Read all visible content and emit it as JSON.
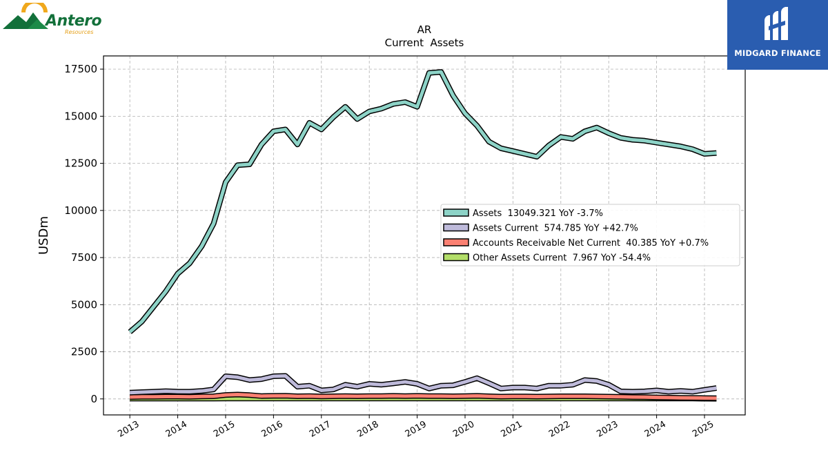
{
  "logos": {
    "left": {
      "name": "Antero",
      "sub": "Resources"
    },
    "right": {
      "name": "MIDGARD FINANCE"
    }
  },
  "colors": {
    "assets": "#8dd3c7",
    "assets_current": "#bebada",
    "accounts_receivable": "#fb8072",
    "other_assets": "#b3de69",
    "outline": "#000000",
    "grid": "#b0b0b0"
  },
  "chart_data": {
    "type": "line",
    "title": "AR",
    "subtitle": "Current  Assets",
    "xlabel": "",
    "ylabel": "USDm",
    "xlim": [
      2012.45,
      2025.85
    ],
    "ylim": [
      -850,
      18200
    ],
    "yticks": [
      0,
      2500,
      5000,
      7500,
      10000,
      12500,
      15000,
      17500
    ],
    "xticks": [
      2013,
      2014,
      2015,
      2016,
      2017,
      2018,
      2019,
      2020,
      2021,
      2022,
      2023,
      2024,
      2025
    ],
    "grid": true,
    "legend_position": "center-right",
    "x": [
      2013.0,
      2013.25,
      2013.5,
      2013.75,
      2014.0,
      2014.25,
      2014.5,
      2014.75,
      2015.0,
      2015.25,
      2015.5,
      2015.75,
      2016.0,
      2016.25,
      2016.5,
      2016.75,
      2017.0,
      2017.25,
      2017.5,
      2017.75,
      2018.0,
      2018.25,
      2018.5,
      2018.75,
      2019.0,
      2019.25,
      2019.5,
      2019.75,
      2020.0,
      2020.25,
      2020.5,
      2020.75,
      2021.0,
      2021.25,
      2021.5,
      2021.75,
      2022.0,
      2022.25,
      2022.5,
      2022.75,
      2023.0,
      2023.25,
      2023.5,
      2023.75,
      2024.0,
      2024.25,
      2024.5,
      2024.75,
      2025.0,
      2025.25
    ],
    "series": [
      {
        "name": "Assets  13049.321 YoY -3.7%",
        "key": "assets",
        "values": [
          3550,
          4100,
          4900,
          5700,
          6650,
          7200,
          8100,
          9300,
          11500,
          12400,
          12450,
          13500,
          14200,
          14300,
          13500,
          14650,
          14300,
          14950,
          15500,
          14850,
          15250,
          15400,
          15650,
          15750,
          15500,
          17300,
          17350,
          16100,
          15150,
          14500,
          13650,
          13300,
          13150,
          13000,
          12850,
          13450,
          13900,
          13800,
          14200,
          14400,
          14100,
          13850,
          13750,
          13700,
          13600,
          13500,
          13400,
          13250,
          13000,
          13049
        ]
      },
      {
        "name": "Assets Current  574.785 YoY +42.7%",
        "key": "assets_current",
        "values": [
          330,
          360,
          380,
          410,
          390,
          380,
          420,
          500,
          1200,
          1150,
          1000,
          1050,
          1200,
          1220,
          650,
          700,
          450,
          500,
          750,
          650,
          800,
          750,
          820,
          900,
          800,
          550,
          700,
          720,
          900,
          1100,
          830,
          550,
          600,
          600,
          550,
          700,
          700,
          750,
          1000,
          950,
          750,
          400,
          380,
          400,
          450,
          380,
          420,
          380,
          480,
          575
        ]
      },
      {
        "name": "Accounts Receivable Net Current  40.385 YoY +0.7%",
        "key": "accounts_receivable",
        "values": [
          100,
          110,
          110,
          120,
          120,
          110,
          130,
          140,
          210,
          230,
          200,
          150,
          160,
          170,
          140,
          150,
          130,
          140,
          150,
          140,
          150,
          150,
          160,
          150,
          160,
          150,
          150,
          140,
          150,
          160,
          140,
          120,
          130,
          130,
          120,
          130,
          140,
          140,
          140,
          130,
          120,
          110,
          100,
          90,
          80,
          70,
          60,
          50,
          45,
          40
        ]
      },
      {
        "name": "Other Assets Current  7.967 YoY -54.4%",
        "key": "other_assets",
        "values": [
          15,
          15,
          15,
          15,
          15,
          15,
          15,
          15,
          20,
          20,
          20,
          20,
          20,
          20,
          20,
          20,
          20,
          20,
          20,
          20,
          20,
          20,
          20,
          20,
          20,
          20,
          20,
          20,
          20,
          20,
          20,
          20,
          20,
          20,
          20,
          20,
          20,
          20,
          20,
          20,
          20,
          20,
          20,
          18,
          17,
          17,
          17,
          17,
          10,
          8
        ]
      }
    ]
  }
}
